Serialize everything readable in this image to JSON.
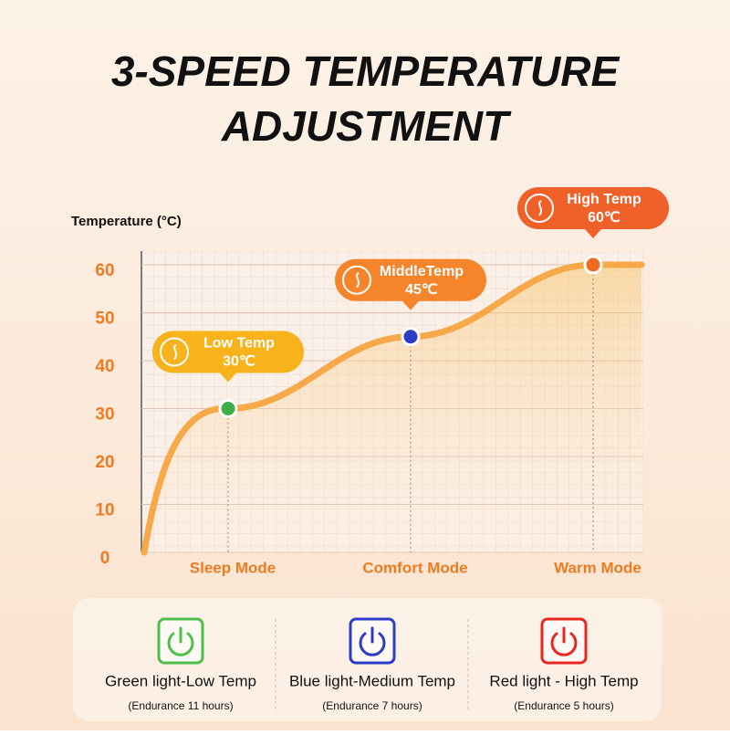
{
  "chart_data": {
    "type": "line",
    "title_lines": [
      "3-SPEED TEMPERATURE",
      "ADJUSTMENT"
    ],
    "y_label": "Temperature (°C)",
    "categories": [
      "Sleep Mode",
      "Comfort Mode",
      "Warm Mode"
    ],
    "values": [
      30,
      45,
      60
    ],
    "value_labels": [
      "30℃",
      "45℃",
      "60℃"
    ],
    "annotations": [
      "Low Temp",
      "MiddleTemp",
      "High Temp"
    ],
    "marker_colors": [
      "#3fae49",
      "#2b3dc7",
      "#f06a22"
    ],
    "callout_colors": [
      "#f7b21c",
      "#f5842a",
      "#f0612a"
    ],
    "color": "#f7a94a",
    "ylim": [
      0,
      60
    ],
    "yticks": [
      0,
      10,
      20,
      30,
      40,
      50,
      60
    ],
    "grid": true
  },
  "indicators": [
    {
      "label": "Green light-Low Temp",
      "note": "(Endurance 11 hours)",
      "color": "#4cc04a"
    },
    {
      "label": "Blue light-Medium Temp",
      "note": "(Endurance 7 hours)",
      "color": "#2b3dc7"
    },
    {
      "label": "Red light - High Temp",
      "note": "(Endurance 5 hours)",
      "color": "#e8281e"
    }
  ]
}
